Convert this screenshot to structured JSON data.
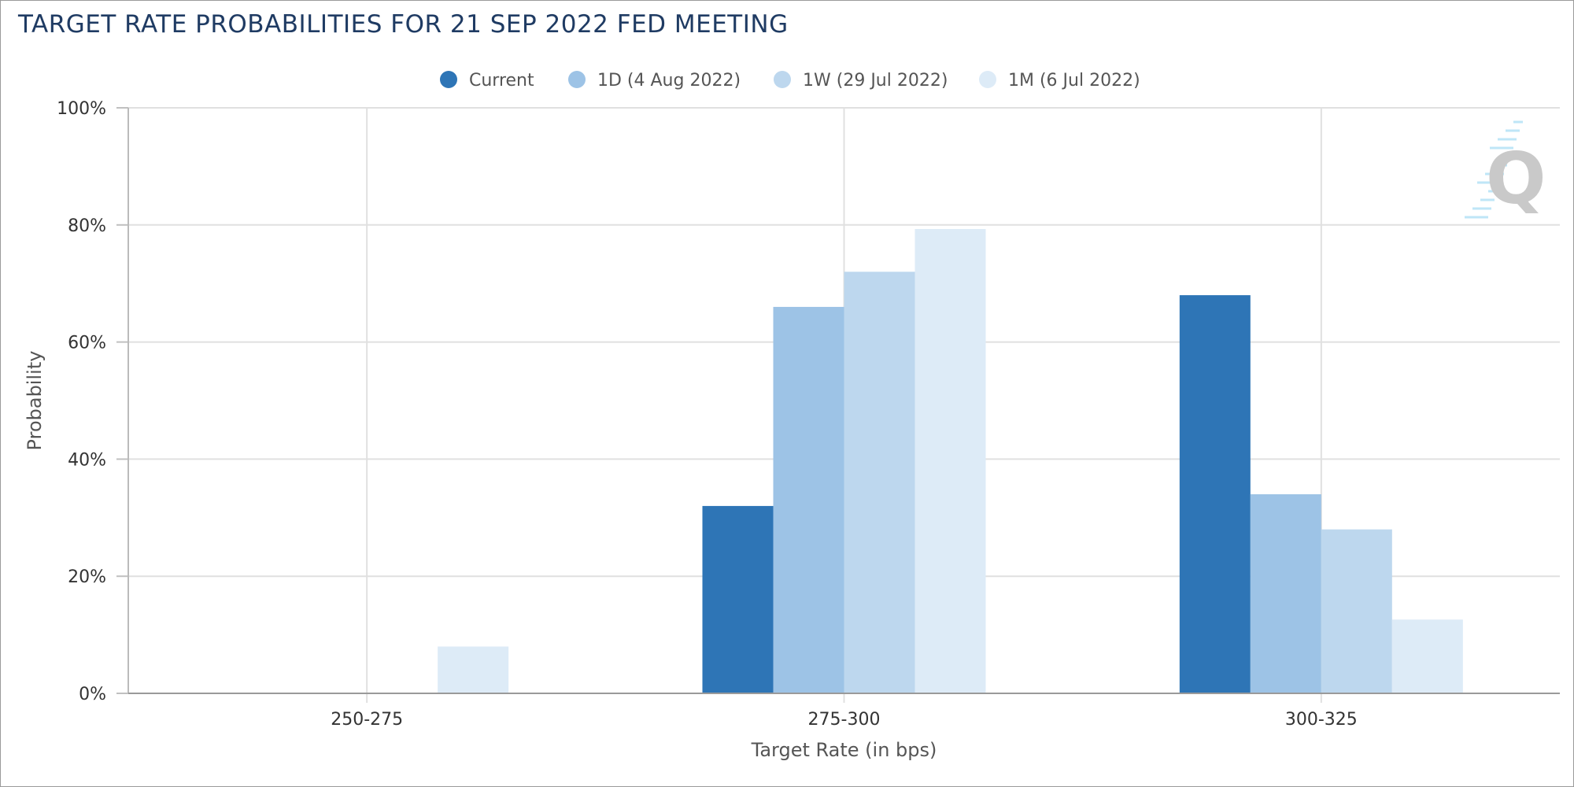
{
  "chart_data": {
    "type": "bar",
    "title": "TARGET RATE PROBABILITIES FOR 21 SEP 2022 FED MEETING",
    "xlabel": "Target Rate (in bps)",
    "ylabel": "Probability",
    "categories": [
      "250-275",
      "275-300",
      "300-325"
    ],
    "ylim": [
      0,
      100
    ],
    "yticks": [
      0,
      20,
      40,
      60,
      80,
      100
    ],
    "ytick_format": "{v}%",
    "grid": true,
    "legend_position": "top-center",
    "series": [
      {
        "name": "Current",
        "color": "#2e75b6",
        "values": [
          0,
          32,
          68
        ]
      },
      {
        "name": "1D (4 Aug 2022)",
        "color": "#9dc3e6",
        "values": [
          0,
          66,
          34
        ]
      },
      {
        "name": "1W (29 Jul 2022)",
        "color": "#bdd7ee",
        "values": [
          0,
          72,
          28
        ]
      },
      {
        "name": "1M (6 Jul 2022)",
        "color": "#ddebf7",
        "values": [
          8,
          79.3,
          12.6
        ]
      }
    ]
  },
  "watermark": {
    "icon": "quikstrike-q-logo-icon",
    "text": "Q"
  }
}
